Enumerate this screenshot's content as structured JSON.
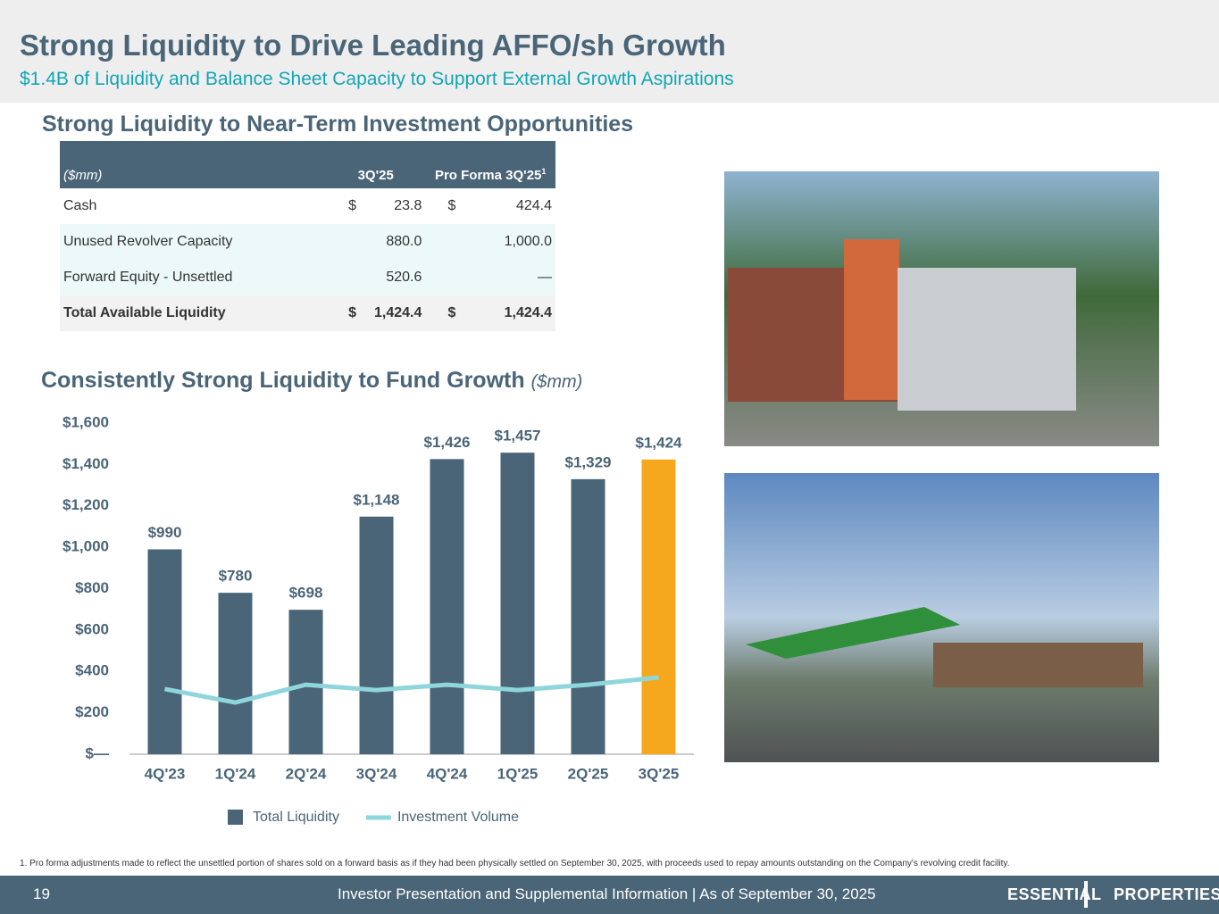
{
  "header": {
    "title": "Strong Liquidity to Drive Leading AFFO/sh Growth",
    "subtitle": "$1.4B of Liquidity and Balance Sheet Capacity to Support External Growth Aspirations"
  },
  "table_heading": "Strong Liquidity to Near-Term Investment Opportunities",
  "table": {
    "header": [
      "($mm)",
      "3Q'25",
      "Pro Forma 3Q'25"
    ],
    "header_footnote_mark": "1",
    "rows": [
      [
        "Cash",
        "$",
        "23.8",
        "$",
        "424.4"
      ],
      [
        "Unused Revolver Capacity",
        "",
        "880.0",
        "",
        "1,000.0"
      ],
      [
        "Forward Equity - Unsettled",
        "",
        "520.6",
        "",
        "—"
      ],
      [
        "Total Available Liquidity",
        "$",
        "1,424.4",
        "$",
        "1,424.4"
      ]
    ]
  },
  "chart_heading": "Consistently Strong Liquidity to Fund Growth",
  "chart_heading_unit": "($mm)",
  "chart_data": {
    "type": "bar",
    "categories": [
      "4Q'23",
      "1Q'24",
      "2Q'24",
      "3Q'24",
      "4Q'24",
      "1Q'25",
      "2Q'25",
      "3Q'25"
    ],
    "series": [
      {
        "name": "Total Liquidity",
        "type": "bar",
        "color": "#4a6578",
        "point_colors": [
          "#4a6578",
          "#4a6578",
          "#4a6578",
          "#4a6578",
          "#4a6578",
          "#4a6578",
          "#4a6578",
          "#f5a81c"
        ],
        "values": [
          990,
          780,
          698,
          1148,
          1426,
          1457,
          1329,
          1424
        ],
        "value_labels": [
          "$990",
          "$780",
          "$698",
          "$1,148",
          "$1,426",
          "$1,457",
          "$1,329",
          "$1,424"
        ]
      },
      {
        "name": "Investment Volume",
        "type": "line",
        "color": "#8fd6dc",
        "values": [
          315,
          250,
          336,
          310,
          336,
          310,
          336,
          371
        ]
      }
    ],
    "ylim": [
      0,
      1600
    ],
    "yticks": [
      {
        "value": 0,
        "label": "$—"
      },
      {
        "value": 200,
        "label": "$200"
      },
      {
        "value": 400,
        "label": "$400"
      },
      {
        "value": 600,
        "label": "$600"
      },
      {
        "value": 800,
        "label": "$800"
      },
      {
        "value": 1000,
        "label": "$1,000"
      },
      {
        "value": 1200,
        "label": "$1,200"
      },
      {
        "value": 1400,
        "label": "$1,400"
      },
      {
        "value": 1600,
        "label": "$1,600"
      }
    ],
    "grid": false,
    "legend": "bottom"
  },
  "footnote": "1.  Pro forma adjustments made to reflect the unsettled portion of shares sold on a forward basis as if they had been physically settled on September 30, 2025, with proceeds used to repay amounts outstanding on the Company's revolving credit facility.",
  "footer": {
    "page": "19",
    "text": "Investor Presentation and Supplemental Information |  As of September 30, 2025",
    "logo_left": "ESSENTIAL",
    "logo_right": "PROPERTIES"
  }
}
